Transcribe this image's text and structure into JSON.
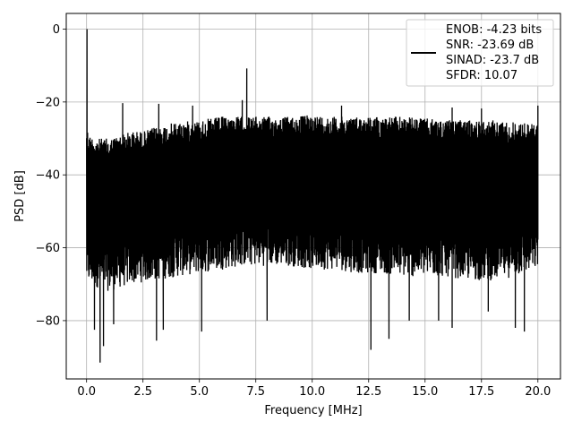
{
  "chart_data": {
    "type": "line",
    "xlabel": "Frequency [MHz]",
    "ylabel": "PSD [dB]",
    "xlim": [
      -0.9,
      21.0
    ],
    "ylim": [
      -96,
      4.3
    ],
    "xticks": [
      0.0,
      2.5,
      5.0,
      7.5,
      10.0,
      12.5,
      15.0,
      17.5,
      20.0
    ],
    "xtick_labels": [
      "0.0",
      "2.5",
      "5.0",
      "7.5",
      "10.0",
      "12.5",
      "15.0",
      "17.5",
      "20.0"
    ],
    "yticks": [
      0,
      -20,
      -40,
      -60,
      -80
    ],
    "ytick_labels": [
      "0",
      "−20",
      "−40",
      "−60",
      "−80"
    ],
    "grid": true,
    "legend_position": "top-right",
    "line_color": "#000000",
    "series": [
      {
        "name": "ENOB: -4.23 bits\nSNR: -23.69 dB\nSINAD: -23.7 dB\nSFDR: 10.07",
        "legend_lines": [
          "ENOB: -4.23 bits",
          "SNR: -23.69 dB",
          "SINAD: -23.7 dB",
          "SFDR: 10.07"
        ],
        "x_range": [
          0.0,
          20.0
        ],
        "envelope_top": [
          [
            0.0,
            -26
          ],
          [
            0.1,
            -29
          ],
          [
            0.5,
            -30
          ],
          [
            1.0,
            -30
          ],
          [
            1.5,
            -29
          ],
          [
            2.0,
            -28
          ],
          [
            2.5,
            -28
          ],
          [
            3.0,
            -27
          ],
          [
            4.0,
            -25.5
          ],
          [
            5.0,
            -25
          ],
          [
            6.0,
            -24
          ],
          [
            7.0,
            -24
          ],
          [
            8.0,
            -24
          ],
          [
            9.0,
            -24
          ],
          [
            10.0,
            -23.5
          ],
          [
            11.0,
            -24
          ],
          [
            12.0,
            -24
          ],
          [
            13.0,
            -24
          ],
          [
            14.0,
            -24
          ],
          [
            15.0,
            -24.5
          ],
          [
            16.0,
            -25
          ],
          [
            17.0,
            -25
          ],
          [
            18.0,
            -25
          ],
          [
            19.0,
            -25.5
          ],
          [
            20.0,
            -26
          ]
        ],
        "envelope_bottom": [
          [
            0.0,
            -70
          ],
          [
            0.5,
            -71
          ],
          [
            1.0,
            -72
          ],
          [
            2.0,
            -70
          ],
          [
            3.0,
            -69
          ],
          [
            4.0,
            -68
          ],
          [
            5.0,
            -67
          ],
          [
            6.0,
            -66
          ],
          [
            7.0,
            -65
          ],
          [
            8.0,
            -65
          ],
          [
            9.0,
            -65
          ],
          [
            10.0,
            -66
          ],
          [
            11.0,
            -66
          ],
          [
            12.0,
            -67
          ],
          [
            13.0,
            -67
          ],
          [
            14.0,
            -68
          ],
          [
            15.0,
            -68
          ],
          [
            16.0,
            -68
          ],
          [
            17.0,
            -69
          ],
          [
            18.0,
            -69
          ],
          [
            19.0,
            -68
          ],
          [
            20.0,
            -66
          ]
        ],
        "peaks": [
          [
            0.02,
            0.0
          ],
          [
            1.6,
            -20.3
          ],
          [
            3.2,
            -20.5
          ],
          [
            6.9,
            -19.5
          ],
          [
            7.1,
            -10.8
          ],
          [
            4.7,
            -21.0
          ],
          [
            11.3,
            -21.0
          ],
          [
            16.2,
            -21.5
          ],
          [
            17.5,
            -21.8
          ],
          [
            20.0,
            -21.0
          ]
        ],
        "dips": [
          [
            0.35,
            -82.5
          ],
          [
            0.6,
            -91.5
          ],
          [
            0.75,
            -87.0
          ],
          [
            1.2,
            -81.0
          ],
          [
            3.1,
            -85.5
          ],
          [
            3.4,
            -82.5
          ],
          [
            5.1,
            -83.0
          ],
          [
            8.0,
            -80.0
          ],
          [
            12.6,
            -88.0
          ],
          [
            13.4,
            -85.0
          ],
          [
            14.3,
            -80.0
          ],
          [
            15.6,
            -80.0
          ],
          [
            16.2,
            -82.0
          ],
          [
            17.8,
            -77.5
          ],
          [
            19.0,
            -82.0
          ],
          [
            19.4,
            -83.0
          ]
        ]
      }
    ]
  }
}
